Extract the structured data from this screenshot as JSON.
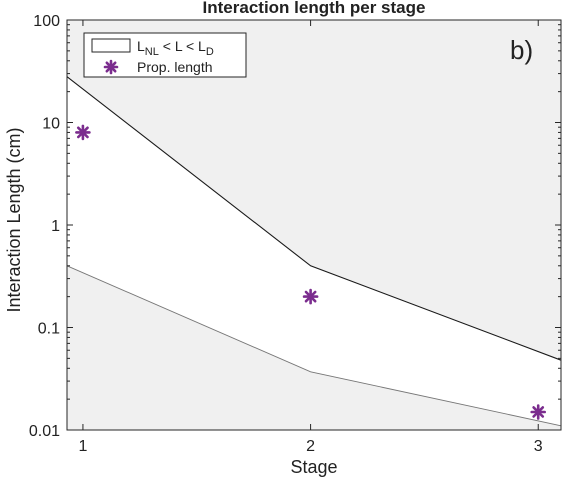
{
  "chart_data": {
    "type": "area",
    "title": "Interaction length per stage",
    "xlabel": "Stage",
    "ylabel": "Interaction Length (cm)",
    "panel_label": "b)",
    "x_scale": "linear",
    "y_scale": "log",
    "xlim": [
      0.93,
      3.1
    ],
    "ylim": [
      0.01,
      100
    ],
    "x_ticks": [
      1,
      2,
      3
    ],
    "x_tick_labels": [
      "1",
      "2",
      "3"
    ],
    "y_ticks": [
      0.01,
      0.1,
      1,
      10,
      100
    ],
    "y_tick_labels": [
      "0.01",
      "0.1",
      "1",
      "10",
      "100"
    ],
    "grid": false,
    "legend_position": "top-left",
    "band": {
      "legend": {
        "main": "L",
        "sub1": "NL",
        "mid": " < L < L",
        "sub2": "D"
      },
      "x": [
        0.93,
        2,
        3.1
      ],
      "upper": [
        28,
        0.4,
        0.048
      ],
      "lower": [
        0.4,
        0.037,
        0.011
      ],
      "fill": "#ffffff",
      "outside_fill": "#f0f0f0"
    },
    "series": [
      {
        "name": "Prop. length",
        "type": "scatter",
        "marker": "asterisk",
        "color": "#7b2d8e",
        "x": [
          1,
          2,
          3
        ],
        "y": [
          8,
          0.2,
          0.015
        ]
      }
    ]
  }
}
